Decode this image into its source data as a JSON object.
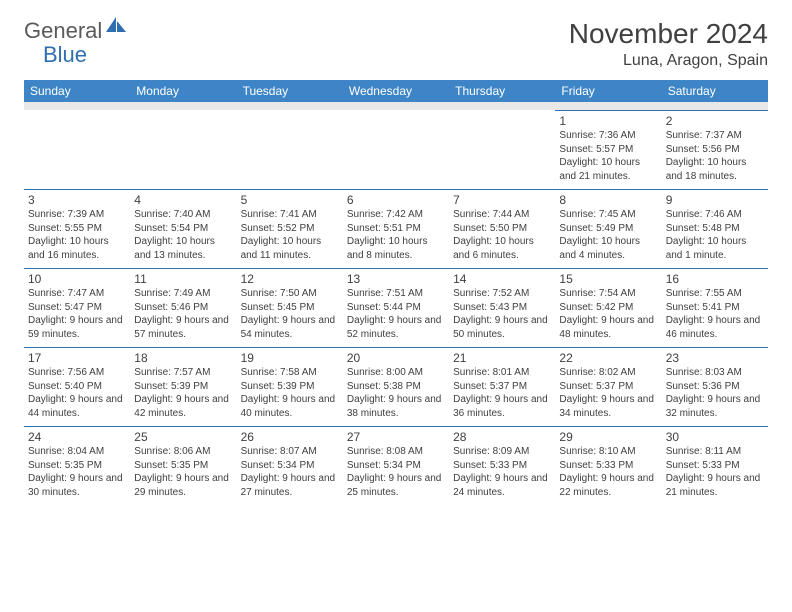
{
  "logo": {
    "text1": "General",
    "text2": "Blue"
  },
  "title": "November 2024",
  "location": "Luna, Aragon, Spain",
  "colors": {
    "headerBg": "#3d85c6",
    "headerText": "#ffffff",
    "borderTop": "#2f6fb0",
    "spacerBg": "#e8e8e8",
    "text": "#404040",
    "logoGray": "#5a5a5a",
    "logoBlue": "#2f6fb0"
  },
  "dayHeaders": [
    "Sunday",
    "Monday",
    "Tuesday",
    "Wednesday",
    "Thursday",
    "Friday",
    "Saturday"
  ],
  "weeks": [
    [
      {
        "n": "",
        "sr": "",
        "ss": "",
        "dl": ""
      },
      {
        "n": "",
        "sr": "",
        "ss": "",
        "dl": ""
      },
      {
        "n": "",
        "sr": "",
        "ss": "",
        "dl": ""
      },
      {
        "n": "",
        "sr": "",
        "ss": "",
        "dl": ""
      },
      {
        "n": "",
        "sr": "",
        "ss": "",
        "dl": ""
      },
      {
        "n": "1",
        "sr": "Sunrise: 7:36 AM",
        "ss": "Sunset: 5:57 PM",
        "dl": "Daylight: 10 hours and 21 minutes."
      },
      {
        "n": "2",
        "sr": "Sunrise: 7:37 AM",
        "ss": "Sunset: 5:56 PM",
        "dl": "Daylight: 10 hours and 18 minutes."
      }
    ],
    [
      {
        "n": "3",
        "sr": "Sunrise: 7:39 AM",
        "ss": "Sunset: 5:55 PM",
        "dl": "Daylight: 10 hours and 16 minutes."
      },
      {
        "n": "4",
        "sr": "Sunrise: 7:40 AM",
        "ss": "Sunset: 5:54 PM",
        "dl": "Daylight: 10 hours and 13 minutes."
      },
      {
        "n": "5",
        "sr": "Sunrise: 7:41 AM",
        "ss": "Sunset: 5:52 PM",
        "dl": "Daylight: 10 hours and 11 minutes."
      },
      {
        "n": "6",
        "sr": "Sunrise: 7:42 AM",
        "ss": "Sunset: 5:51 PM",
        "dl": "Daylight: 10 hours and 8 minutes."
      },
      {
        "n": "7",
        "sr": "Sunrise: 7:44 AM",
        "ss": "Sunset: 5:50 PM",
        "dl": "Daylight: 10 hours and 6 minutes."
      },
      {
        "n": "8",
        "sr": "Sunrise: 7:45 AM",
        "ss": "Sunset: 5:49 PM",
        "dl": "Daylight: 10 hours and 4 minutes."
      },
      {
        "n": "9",
        "sr": "Sunrise: 7:46 AM",
        "ss": "Sunset: 5:48 PM",
        "dl": "Daylight: 10 hours and 1 minute."
      }
    ],
    [
      {
        "n": "10",
        "sr": "Sunrise: 7:47 AM",
        "ss": "Sunset: 5:47 PM",
        "dl": "Daylight: 9 hours and 59 minutes."
      },
      {
        "n": "11",
        "sr": "Sunrise: 7:49 AM",
        "ss": "Sunset: 5:46 PM",
        "dl": "Daylight: 9 hours and 57 minutes."
      },
      {
        "n": "12",
        "sr": "Sunrise: 7:50 AM",
        "ss": "Sunset: 5:45 PM",
        "dl": "Daylight: 9 hours and 54 minutes."
      },
      {
        "n": "13",
        "sr": "Sunrise: 7:51 AM",
        "ss": "Sunset: 5:44 PM",
        "dl": "Daylight: 9 hours and 52 minutes."
      },
      {
        "n": "14",
        "sr": "Sunrise: 7:52 AM",
        "ss": "Sunset: 5:43 PM",
        "dl": "Daylight: 9 hours and 50 minutes."
      },
      {
        "n": "15",
        "sr": "Sunrise: 7:54 AM",
        "ss": "Sunset: 5:42 PM",
        "dl": "Daylight: 9 hours and 48 minutes."
      },
      {
        "n": "16",
        "sr": "Sunrise: 7:55 AM",
        "ss": "Sunset: 5:41 PM",
        "dl": "Daylight: 9 hours and 46 minutes."
      }
    ],
    [
      {
        "n": "17",
        "sr": "Sunrise: 7:56 AM",
        "ss": "Sunset: 5:40 PM",
        "dl": "Daylight: 9 hours and 44 minutes."
      },
      {
        "n": "18",
        "sr": "Sunrise: 7:57 AM",
        "ss": "Sunset: 5:39 PM",
        "dl": "Daylight: 9 hours and 42 minutes."
      },
      {
        "n": "19",
        "sr": "Sunrise: 7:58 AM",
        "ss": "Sunset: 5:39 PM",
        "dl": "Daylight: 9 hours and 40 minutes."
      },
      {
        "n": "20",
        "sr": "Sunrise: 8:00 AM",
        "ss": "Sunset: 5:38 PM",
        "dl": "Daylight: 9 hours and 38 minutes."
      },
      {
        "n": "21",
        "sr": "Sunrise: 8:01 AM",
        "ss": "Sunset: 5:37 PM",
        "dl": "Daylight: 9 hours and 36 minutes."
      },
      {
        "n": "22",
        "sr": "Sunrise: 8:02 AM",
        "ss": "Sunset: 5:37 PM",
        "dl": "Daylight: 9 hours and 34 minutes."
      },
      {
        "n": "23",
        "sr": "Sunrise: 8:03 AM",
        "ss": "Sunset: 5:36 PM",
        "dl": "Daylight: 9 hours and 32 minutes."
      }
    ],
    [
      {
        "n": "24",
        "sr": "Sunrise: 8:04 AM",
        "ss": "Sunset: 5:35 PM",
        "dl": "Daylight: 9 hours and 30 minutes."
      },
      {
        "n": "25",
        "sr": "Sunrise: 8:06 AM",
        "ss": "Sunset: 5:35 PM",
        "dl": "Daylight: 9 hours and 29 minutes."
      },
      {
        "n": "26",
        "sr": "Sunrise: 8:07 AM",
        "ss": "Sunset: 5:34 PM",
        "dl": "Daylight: 9 hours and 27 minutes."
      },
      {
        "n": "27",
        "sr": "Sunrise: 8:08 AM",
        "ss": "Sunset: 5:34 PM",
        "dl": "Daylight: 9 hours and 25 minutes."
      },
      {
        "n": "28",
        "sr": "Sunrise: 8:09 AM",
        "ss": "Sunset: 5:33 PM",
        "dl": "Daylight: 9 hours and 24 minutes."
      },
      {
        "n": "29",
        "sr": "Sunrise: 8:10 AM",
        "ss": "Sunset: 5:33 PM",
        "dl": "Daylight: 9 hours and 22 minutes."
      },
      {
        "n": "30",
        "sr": "Sunrise: 8:11 AM",
        "ss": "Sunset: 5:33 PM",
        "dl": "Daylight: 9 hours and 21 minutes."
      }
    ]
  ]
}
